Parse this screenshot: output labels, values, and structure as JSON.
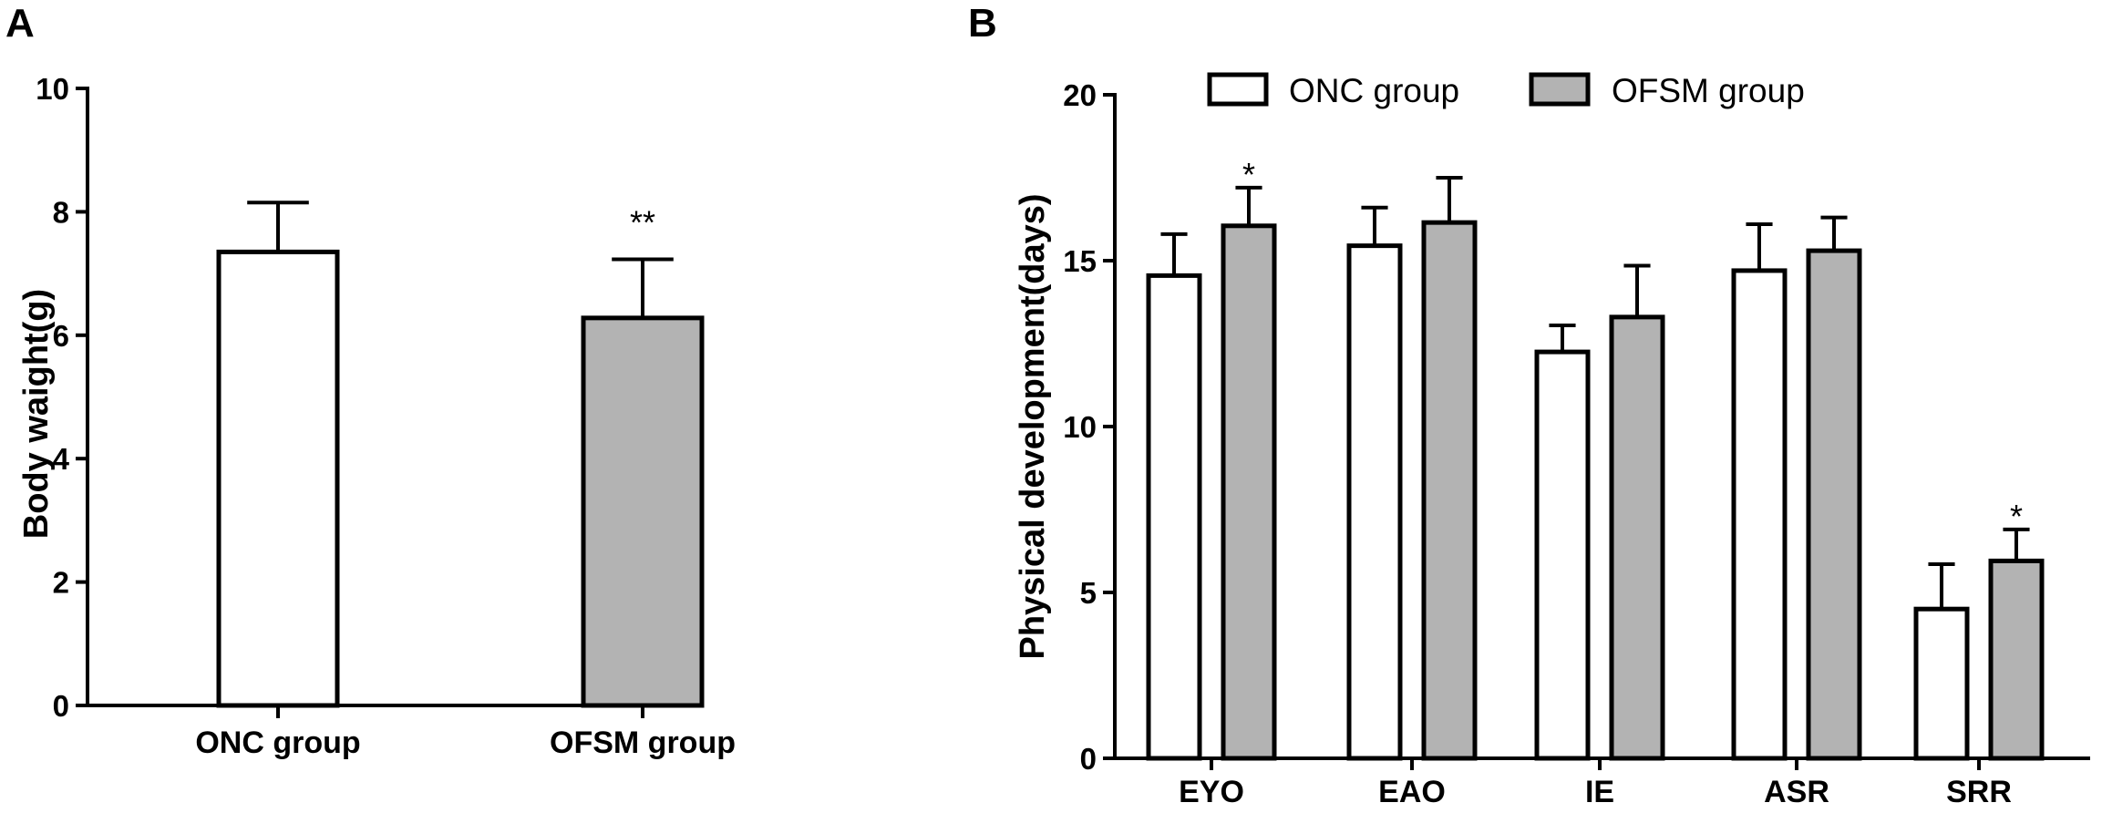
{
  "colors": {
    "onc": "#ffffff",
    "ofsm": "#b3b3b3",
    "stroke": "#000000"
  },
  "chart_data": [
    {
      "panel": "A",
      "type": "bar",
      "title": "",
      "xlabel": "",
      "ylabel": "Body waight(g)",
      "ylim": [
        0,
        10
      ],
      "yticks": [
        0,
        2,
        4,
        6,
        8,
        10
      ],
      "ytick_labels": [
        "0",
        "2",
        "4",
        "6",
        "8",
        "10"
      ],
      "categories": [
        "ONC group",
        "OFSM group"
      ],
      "values": [
        7.35,
        6.28
      ],
      "errors": [
        0.8,
        0.95
      ],
      "significance": [
        "",
        "**"
      ],
      "grid": false,
      "legend": null
    },
    {
      "panel": "B",
      "type": "bar",
      "title": "",
      "xlabel": "",
      "ylabel": "Physical development(days)",
      "ylim": [
        0,
        20
      ],
      "yticks": [
        0,
        5,
        10,
        15,
        20
      ],
      "ytick_labels": [
        "0",
        "5",
        "10",
        "15",
        "20"
      ],
      "categories": [
        "EYO",
        "EAO",
        "IE",
        "ASR",
        "SRR"
      ],
      "series": [
        {
          "name": "ONC group",
          "values": [
            14.55,
            15.45,
            12.25,
            14.7,
            4.5
          ],
          "errors": [
            1.25,
            1.15,
            0.8,
            1.4,
            1.35
          ],
          "significance": [
            "",
            "",
            "",
            "",
            ""
          ]
        },
        {
          "name": "OFSM group",
          "values": [
            16.05,
            16.15,
            13.3,
            15.3,
            5.95
          ],
          "errors": [
            1.15,
            1.35,
            1.55,
            1.0,
            0.95
          ],
          "significance": [
            "*",
            "",
            "",
            "",
            "*"
          ]
        }
      ],
      "grid": false,
      "legend": "top"
    }
  ]
}
